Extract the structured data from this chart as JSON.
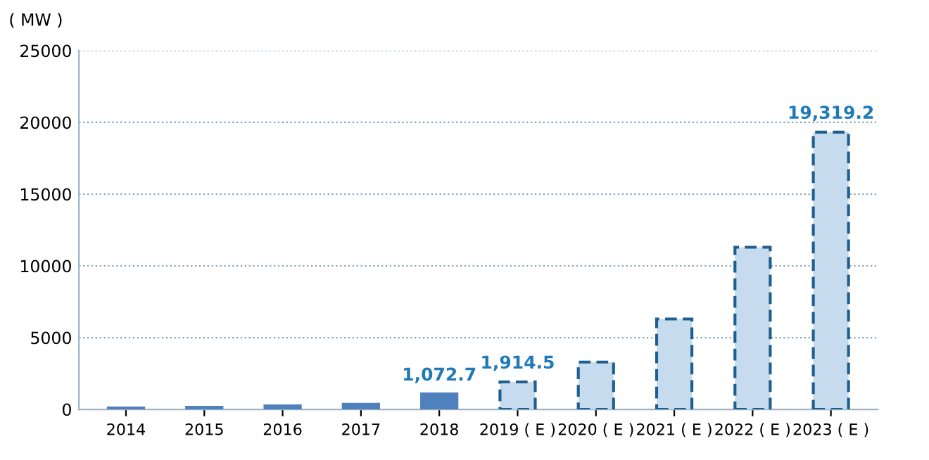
{
  "chart_data": {
    "type": "bar",
    "ylabel": "( MW )",
    "categories": [
      "2014",
      "2015",
      "2016",
      "2017",
      "2018",
      "2019 ( E )",
      "2020 ( E )",
      "2021 ( E )",
      "2022 ( E )",
      "2023 ( E )"
    ],
    "series": [
      {
        "color": "#4f81bd",
        "line_style": "solid",
        "values": [
          100,
          150,
          250,
          350,
          1072.7,
          null,
          null,
          null,
          null,
          null
        ],
        "value_labels": [
          null,
          null,
          null,
          null,
          "1,072.7",
          null,
          null,
          null,
          null,
          null
        ]
      },
      {
        "color": "#c6dcee",
        "line_style": "dashed",
        "values": [
          null,
          null,
          null,
          null,
          null,
          1914.5,
          3300,
          6300,
          11300,
          19319.2
        ],
        "value_labels": [
          null,
          null,
          null,
          null,
          null,
          "1,914.5",
          null,
          null,
          null,
          "19,319.2"
        ]
      }
    ],
    "ylim": [
      0,
      25000
    ],
    "yticks": [
      0,
      5000,
      10000,
      15000,
      20000,
      25000
    ],
    "grid": "y"
  }
}
